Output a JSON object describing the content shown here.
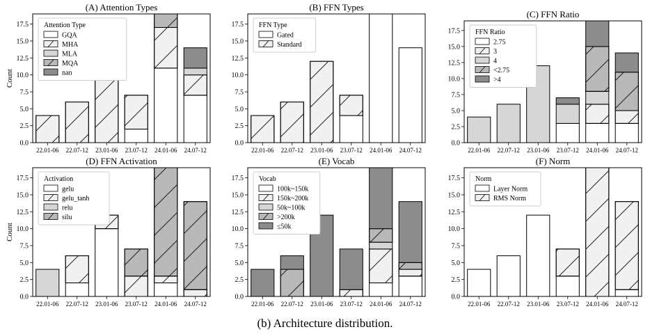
{
  "figure": {
    "caption": "(b) Architecture distribution."
  },
  "colors": {
    "white": "#ffffff",
    "light": "#d6d6d6",
    "mid": "#b8b8b8",
    "dark": "#8c8c8c",
    "edge": "#000000",
    "hatchfill": "#f0f0f0"
  },
  "chart_data": [
    {
      "type": "bar",
      "stacked": true,
      "title": "(A) Attention Types",
      "ylabel": "Count",
      "xlabel": "",
      "categories": [
        "22.01-06",
        "22.07-12",
        "23.01-06",
        "23.07-12",
        "24.01-06",
        "24.07-12"
      ],
      "ylim": [
        0,
        19
      ],
      "yticks": [
        0,
        2.5,
        5.0,
        7.5,
        10.0,
        12.5,
        15.0,
        17.5
      ],
      "legend_title": "Attention Type",
      "legend_position": "upper left",
      "series": [
        {
          "name": "GQA",
          "values": [
            0,
            0,
            0,
            2,
            11,
            7
          ],
          "fill": "white",
          "hatch": false
        },
        {
          "name": "MHA",
          "values": [
            4,
            6,
            12,
            5,
            6,
            3
          ],
          "fill": "hatchfill",
          "hatch": true
        },
        {
          "name": "MLA",
          "values": [
            0,
            0,
            0,
            0,
            0,
            1
          ],
          "fill": "light",
          "hatch": false
        },
        {
          "name": "MQA",
          "values": [
            0,
            0,
            0,
            0,
            2,
            0
          ],
          "fill": "mid",
          "hatch": true
        },
        {
          "name": "nan",
          "values": [
            0,
            0,
            0,
            0,
            0,
            3
          ],
          "fill": "dark",
          "hatch": false
        }
      ]
    },
    {
      "type": "bar",
      "stacked": true,
      "title": "(B) FFN Types",
      "ylabel": "",
      "xlabel": "",
      "categories": [
        "22.01-06",
        "22.07-12",
        "23.01-06",
        "23.07-12",
        "24.01-06",
        "24.07-12"
      ],
      "ylim": [
        0,
        19
      ],
      "yticks": [
        0,
        2.5,
        5.0,
        7.5,
        10.0,
        12.5,
        15.0,
        17.5
      ],
      "legend_title": "FFN Type",
      "legend_position": "upper left",
      "series": [
        {
          "name": "Gated",
          "values": [
            0,
            0,
            0,
            4,
            19,
            14
          ],
          "fill": "white",
          "hatch": false
        },
        {
          "name": "Standard",
          "values": [
            4,
            6,
            12,
            3,
            0,
            0
          ],
          "fill": "hatchfill",
          "hatch": true
        }
      ]
    },
    {
      "type": "bar",
      "stacked": true,
      "title": "(C) FFN Ratio",
      "ylabel": "",
      "xlabel": "",
      "categories": [
        "22.01-06",
        "22.07-12",
        "23.01-06",
        "23.07-12",
        "24.01-06",
        "24.07-12"
      ],
      "ylim": [
        0,
        19
      ],
      "yticks": [
        0,
        2.5,
        5.0,
        7.5,
        10.0,
        12.5,
        15.0,
        17.5
      ],
      "legend_title": "FFN Ratio",
      "legend_position": "upper left",
      "series": [
        {
          "name": "2.75",
          "values": [
            0,
            0,
            0,
            3,
            3,
            3
          ],
          "fill": "white",
          "hatch": false
        },
        {
          "name": "3",
          "values": [
            0,
            0,
            0,
            0,
            3,
            2
          ],
          "fill": "hatchfill",
          "hatch": true
        },
        {
          "name": "4",
          "values": [
            4,
            6,
            12,
            3,
            2,
            0
          ],
          "fill": "light",
          "hatch": false
        },
        {
          "name": "<2.75",
          "values": [
            0,
            0,
            0,
            0,
            7,
            6
          ],
          "fill": "mid",
          "hatch": true
        },
        {
          "name": ">4",
          "values": [
            0,
            0,
            0,
            1,
            4,
            3
          ],
          "fill": "dark",
          "hatch": false
        }
      ]
    },
    {
      "type": "bar",
      "stacked": true,
      "title": "(D) FFN Activation",
      "ylabel": "Count",
      "xlabel": "",
      "categories": [
        "22.01-06",
        "22.07-12",
        "23.01-06",
        "23.07-12",
        "24.01-06",
        "24.07-12"
      ],
      "ylim": [
        0,
        19
      ],
      "yticks": [
        0,
        2.5,
        5.0,
        7.5,
        10.0,
        12.5,
        15.0,
        17.5
      ],
      "legend_title": "Activation",
      "legend_position": "upper left",
      "series": [
        {
          "name": "gelu",
          "values": [
            0,
            2,
            10,
            0,
            2,
            0
          ],
          "fill": "white",
          "hatch": false
        },
        {
          "name": "gelu_tanh",
          "values": [
            0,
            4,
            2,
            3,
            1,
            1
          ],
          "fill": "hatchfill",
          "hatch": true
        },
        {
          "name": "relu",
          "values": [
            4,
            0,
            0,
            0,
            0,
            0
          ],
          "fill": "light",
          "hatch": false
        },
        {
          "name": "silu",
          "values": [
            0,
            0,
            0,
            4,
            16,
            13
          ],
          "fill": "mid",
          "hatch": true
        }
      ]
    },
    {
      "type": "bar",
      "stacked": true,
      "title": "(E) Vocab",
      "ylabel": "",
      "xlabel": "",
      "categories": [
        "22.01-06",
        "22.07-12",
        "23.01-06",
        "23.07-12",
        "24.01-06",
        "24.07-12"
      ],
      "ylim": [
        0,
        19
      ],
      "yticks": [
        0,
        2.5,
        5.0,
        7.5,
        10.0,
        12.5,
        15.0,
        17.5
      ],
      "legend_title": "Vocab",
      "legend_position": "upper left",
      "series": [
        {
          "name": "100k~150k",
          "values": [
            0,
            0,
            0,
            0,
            2,
            3
          ],
          "fill": "white",
          "hatch": false
        },
        {
          "name": "150k~200k",
          "values": [
            0,
            0,
            0,
            1,
            5,
            1
          ],
          "fill": "hatchfill",
          "hatch": true
        },
        {
          "name": "50k~100k",
          "values": [
            0,
            0,
            0,
            0,
            1,
            0
          ],
          "fill": "light",
          "hatch": false
        },
        {
          "name": ">200k",
          "values": [
            0,
            4,
            0,
            0,
            2,
            1
          ],
          "fill": "mid",
          "hatch": true
        },
        {
          "name": "≤50k",
          "values": [
            4,
            2,
            12,
            6,
            9,
            9
          ],
          "fill": "dark",
          "hatch": false
        }
      ]
    },
    {
      "type": "bar",
      "stacked": true,
      "title": "(F) Norm",
      "ylabel": "",
      "xlabel": "",
      "categories": [
        "22.01-06",
        "22.07-12",
        "23.01-06",
        "23.07-12",
        "24.01-06",
        "24.07-12"
      ],
      "ylim": [
        0,
        19
      ],
      "yticks": [
        0,
        2.5,
        5.0,
        7.5,
        10.0,
        12.5,
        15.0,
        17.5
      ],
      "legend_title": "Norm",
      "legend_position": "upper left",
      "series": [
        {
          "name": "Layer Norm",
          "values": [
            4,
            6,
            12,
            3,
            0,
            1
          ],
          "fill": "white",
          "hatch": false
        },
        {
          "name": "RMS Norm",
          "values": [
            0,
            0,
            0,
            4,
            19,
            13
          ],
          "fill": "hatchfill",
          "hatch": true
        }
      ]
    }
  ]
}
